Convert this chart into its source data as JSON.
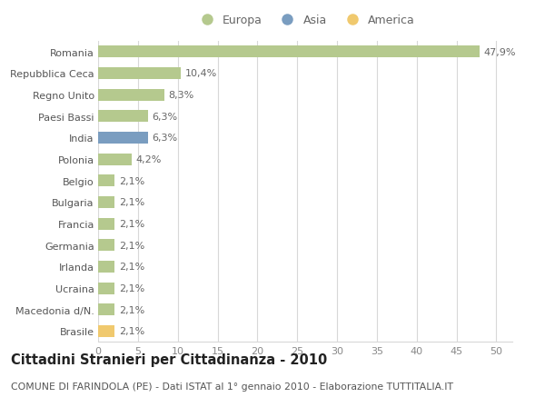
{
  "categories": [
    "Brasile",
    "Macedonia d/N.",
    "Ucraina",
    "Irlanda",
    "Germania",
    "Francia",
    "Bulgaria",
    "Belgio",
    "Polonia",
    "India",
    "Paesi Bassi",
    "Regno Unito",
    "Repubblica Ceca",
    "Romania"
  ],
  "values": [
    2.1,
    2.1,
    2.1,
    2.1,
    2.1,
    2.1,
    2.1,
    2.1,
    4.2,
    6.3,
    6.3,
    8.3,
    10.4,
    47.9
  ],
  "bar_colors": [
    "#f0c96e",
    "#b5c98e",
    "#b5c98e",
    "#b5c98e",
    "#b5c98e",
    "#b5c98e",
    "#b5c98e",
    "#b5c98e",
    "#b5c98e",
    "#7a9dc0",
    "#b5c98e",
    "#b5c98e",
    "#b5c98e",
    "#b5c98e"
  ],
  "labels": [
    "2,1%",
    "2,1%",
    "2,1%",
    "2,1%",
    "2,1%",
    "2,1%",
    "2,1%",
    "2,1%",
    "4,2%",
    "6,3%",
    "6,3%",
    "8,3%",
    "10,4%",
    "47,9%"
  ],
  "legend": [
    {
      "label": "Europa",
      "color": "#b5c98e"
    },
    {
      "label": "Asia",
      "color": "#7a9dc0"
    },
    {
      "label": "America",
      "color": "#f0c96e"
    }
  ],
  "xlim": [
    0,
    52
  ],
  "xticks": [
    0,
    5,
    10,
    15,
    20,
    25,
    30,
    35,
    40,
    45,
    50
  ],
  "title": "Cittadini Stranieri per Cittadinanza - 2010",
  "subtitle": "COMUNE DI FARINDOLA (PE) - Dati ISTAT al 1° gennaio 2010 - Elaborazione TUTTITALIA.IT",
  "background_color": "#ffffff",
  "grid_color": "#d8d8d8",
  "label_fontsize": 8.0,
  "tick_fontsize": 8.0,
  "title_fontsize": 10.5,
  "subtitle_fontsize": 7.8,
  "bar_height": 0.55
}
